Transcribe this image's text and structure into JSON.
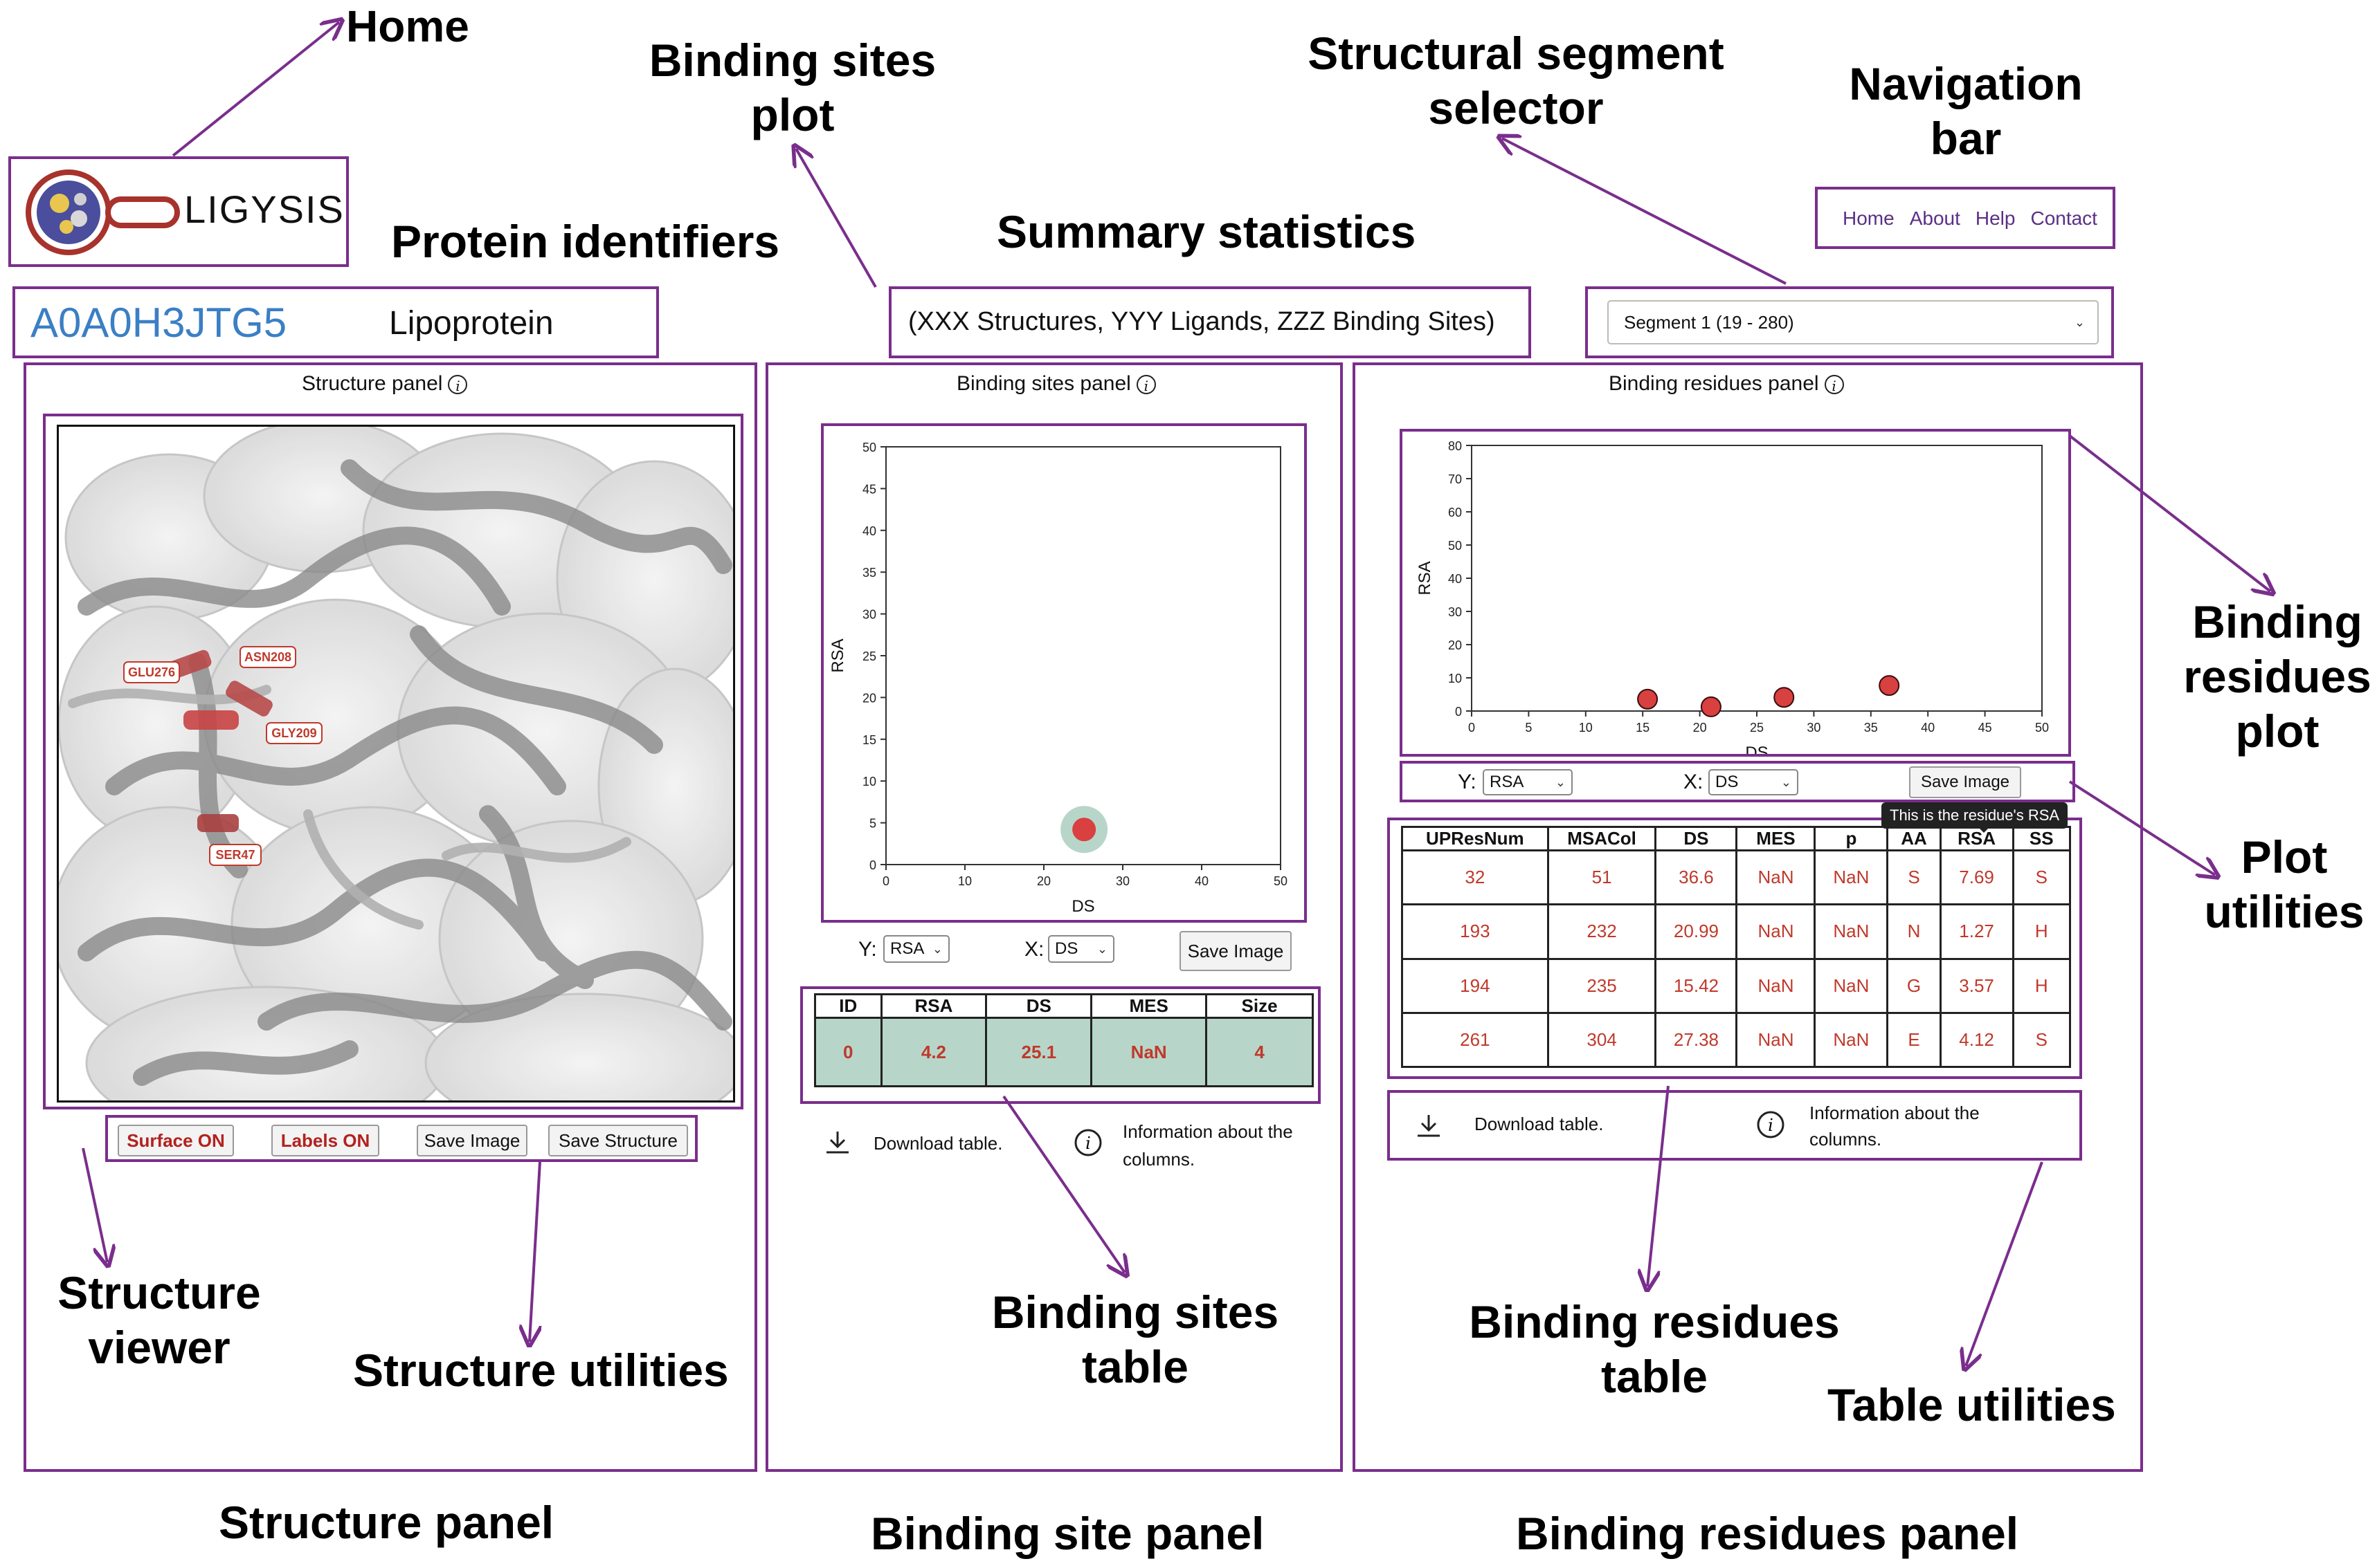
{
  "header": {
    "logo_text": "LIGYSIS",
    "protein_id": "A0A0H3JTG5",
    "protein_name": "Lipoprotein",
    "summary": "(XXX Structures,  YYY Ligands,  ZZZ Binding Sites)",
    "segment_selected": "Segment 1 (19 - 280)"
  },
  "nav": {
    "items": [
      "Home",
      "About",
      "Help",
      "Contact"
    ]
  },
  "structure_panel": {
    "title": "Structure panel",
    "residue_labels": [
      "GLU276",
      "ASN208",
      "GLY209",
      "SER47"
    ],
    "buttons": {
      "surface": "Surface ON",
      "labels": "Labels ON",
      "save_image": "Save Image",
      "save_structure": "Save Structure"
    }
  },
  "sites_panel": {
    "title": "Binding sites panel",
    "y_label": "Y:",
    "x_label": "X:",
    "y_select": "RSA",
    "x_select": "DS",
    "save_image": "Save Image",
    "table": {
      "headers": [
        "ID",
        "RSA",
        "DS",
        "MES",
        "Size"
      ],
      "rows": [
        [
          "0",
          "4.2",
          "25.1",
          "NaN",
          "4"
        ]
      ]
    },
    "download": "Download table.",
    "info_line1": "Information about the",
    "info_line2": "columns."
  },
  "residues_panel": {
    "title": "Binding residues panel",
    "y_label": "Y:",
    "x_label": "X:",
    "y_select": "RSA",
    "x_select": "DS",
    "save_image": "Save Image",
    "tooltip": "This is the residue's RSA",
    "table": {
      "headers": [
        "UPResNum",
        "MSACol",
        "DS",
        "MES",
        "p",
        "AA",
        "RSA",
        "SS"
      ],
      "rows": [
        [
          "32",
          "51",
          "36.6",
          "NaN",
          "NaN",
          "S",
          "7.69",
          "S"
        ],
        [
          "193",
          "232",
          "20.99",
          "NaN",
          "NaN",
          "N",
          "1.27",
          "H"
        ],
        [
          "194",
          "235",
          "15.42",
          "NaN",
          "NaN",
          "G",
          "3.57",
          "H"
        ],
        [
          "261",
          "304",
          "27.38",
          "NaN",
          "NaN",
          "E",
          "4.12",
          "S"
        ]
      ]
    },
    "download": "Download table.",
    "info_line1": "Information about the",
    "info_line2": "columns."
  },
  "annotations": {
    "home": "Home",
    "binding_sites_plot_1": "Binding sites",
    "binding_sites_plot_2": "plot",
    "segment_selector_1": "Structural segment",
    "segment_selector_2": "selector",
    "navigation_bar_1": "Navigation",
    "navigation_bar_2": "bar",
    "protein_identifiers": "Protein identifiers",
    "summary_statistics": "Summary statistics",
    "binding_residues_plot_1": "Binding",
    "binding_residues_plot_2": "residues",
    "binding_residues_plot_3": "plot",
    "plot_utilities_1": "Plot",
    "plot_utilities_2": "utilities",
    "structure_viewer_1": "Structure",
    "structure_viewer_2": "viewer",
    "structure_utilities": "Structure utilities",
    "binding_sites_table_1": "Binding sites",
    "binding_sites_table_2": "table",
    "binding_residues_table_1": "Binding residues",
    "binding_residues_table_2": "table",
    "table_utilities": "Table utilities",
    "structure_panel": "Structure panel",
    "binding_site_panel": "Binding site panel",
    "binding_residues_panel": "Binding residues panel"
  },
  "colors": {
    "frame": "#7a2e8c",
    "id_blue": "#3b7fc4",
    "point_red": "#d94040",
    "site_row": "#b7d6c9",
    "value_red": "#c0392b"
  },
  "chart_data": [
    {
      "type": "scatter",
      "xlabel": "DS",
      "ylabel": "RSA",
      "xlim": [
        0,
        50
      ],
      "ylim": [
        0,
        50
      ],
      "xticks": [
        0,
        10,
        20,
        30,
        40,
        50
      ],
      "yticks": [
        0,
        5,
        10,
        15,
        20,
        25,
        30,
        35,
        40,
        45,
        50
      ],
      "points": [
        {
          "x": 25.1,
          "y": 4.2
        }
      ]
    },
    {
      "type": "scatter",
      "xlabel": "DS",
      "ylabel": "RSA",
      "xlim": [
        0,
        50
      ],
      "ylim": [
        0,
        80
      ],
      "xticks": [
        0,
        5,
        10,
        15,
        20,
        25,
        30,
        35,
        40,
        45,
        50
      ],
      "yticks": [
        0,
        10,
        20,
        30,
        40,
        50,
        60,
        70,
        80
      ],
      "points": [
        {
          "x": 36.6,
          "y": 7.69
        },
        {
          "x": 20.99,
          "y": 1.27
        },
        {
          "x": 15.42,
          "y": 3.57
        },
        {
          "x": 27.38,
          "y": 4.12
        }
      ]
    }
  ]
}
